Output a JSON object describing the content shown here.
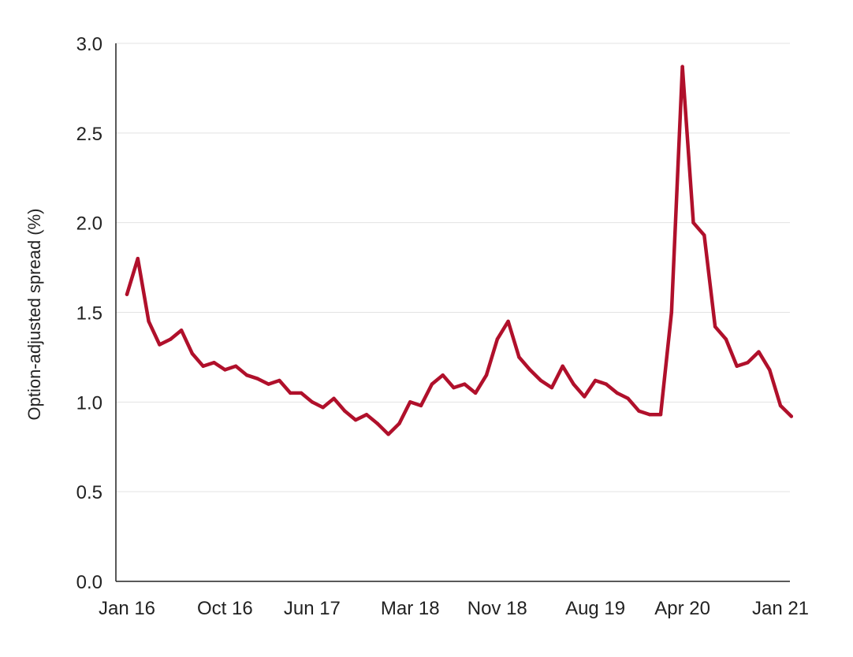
{
  "chart_data": {
    "type": "line",
    "title": "",
    "xlabel": "",
    "ylabel": "Option-adjusted spread (%)",
    "ylim": [
      0,
      3
    ],
    "yticks": [
      {
        "value": 0.0,
        "label": "0.0"
      },
      {
        "value": 0.5,
        "label": "0.5"
      },
      {
        "value": 1.0,
        "label": "1.0"
      },
      {
        "value": 1.5,
        "label": "1.5"
      },
      {
        "value": 2.0,
        "label": "2.0"
      },
      {
        "value": 2.5,
        "label": "2.5"
      },
      {
        "value": 3.0,
        "label": "3.0"
      }
    ],
    "xlim": [
      "2016-01",
      "2021-03"
    ],
    "xticks": [
      {
        "date": "2016-01",
        "label": "Jan 16"
      },
      {
        "date": "2016-10",
        "label": "Oct 16"
      },
      {
        "date": "2017-06",
        "label": "Jun 17"
      },
      {
        "date": "2018-03",
        "label": "Mar 18"
      },
      {
        "date": "2018-11",
        "label": "Nov 18"
      },
      {
        "date": "2019-08",
        "label": "Aug 19"
      },
      {
        "date": "2020-04",
        "label": "Apr 20"
      },
      {
        "date": "2021-01",
        "label": "Jan 21"
      }
    ],
    "grid": "horizontal",
    "legend": "none",
    "colors": {
      "line": "#B0102B",
      "grid": "#e3e3e3",
      "axis": "#222222"
    },
    "series": [
      {
        "x": [
          "2016-01",
          "2016-02",
          "2016-03",
          "2016-04",
          "2016-05",
          "2016-06",
          "2016-07",
          "2016-08",
          "2016-09",
          "2016-10",
          "2016-11",
          "2016-12",
          "2017-01",
          "2017-02",
          "2017-03",
          "2017-04",
          "2017-05",
          "2017-06",
          "2017-07",
          "2017-08",
          "2017-09",
          "2017-10",
          "2017-11",
          "2017-12",
          "2018-01",
          "2018-02",
          "2018-03",
          "2018-04",
          "2018-05",
          "2018-06",
          "2018-07",
          "2018-08",
          "2018-09",
          "2018-10",
          "2018-11",
          "2018-12",
          "2019-01",
          "2019-02",
          "2019-03",
          "2019-04",
          "2019-05",
          "2019-06",
          "2019-07",
          "2019-08",
          "2019-09",
          "2019-10",
          "2019-11",
          "2019-12",
          "2020-01",
          "2020-02",
          "2020-03",
          "2020-04",
          "2020-05",
          "2020-06",
          "2020-07",
          "2020-08",
          "2020-09",
          "2020-10",
          "2020-11",
          "2020-12",
          "2021-01",
          "2021-02"
        ],
        "values": [
          1.6,
          1.8,
          1.45,
          1.32,
          1.35,
          1.4,
          1.27,
          1.2,
          1.22,
          1.18,
          1.2,
          1.15,
          1.13,
          1.1,
          1.12,
          1.05,
          1.05,
          1.0,
          0.97,
          1.02,
          0.95,
          0.9,
          0.93,
          0.88,
          0.82,
          0.88,
          1.0,
          0.98,
          1.1,
          1.15,
          1.08,
          1.1,
          1.05,
          1.15,
          1.35,
          1.45,
          1.25,
          1.18,
          1.12,
          1.08,
          1.2,
          1.1,
          1.03,
          1.12,
          1.1,
          1.05,
          1.02,
          0.95,
          0.93,
          0.93,
          1.5,
          2.87,
          2.0,
          1.93,
          1.42,
          1.35,
          1.2,
          1.22,
          1.28,
          1.18,
          0.98,
          0.92
        ]
      }
    ]
  }
}
